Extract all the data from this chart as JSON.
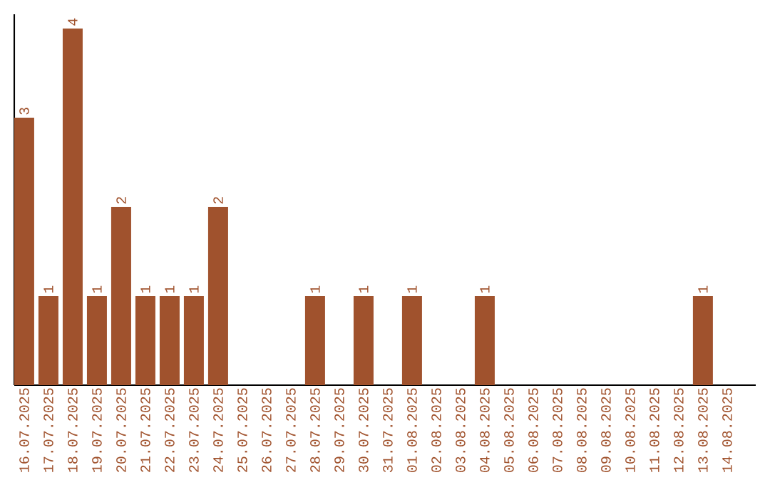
{
  "chart_data": {
    "type": "bar",
    "color": "#a0522d",
    "categories": [
      "16.07.2025",
      "17.07.2025",
      "18.07.2025",
      "19.07.2025",
      "20.07.2025",
      "21.07.2025",
      "22.07.2025",
      "23.07.2025",
      "24.07.2025",
      "25.07.2025",
      "26.07.2025",
      "27.07.2025",
      "28.07.2025",
      "29.07.2025",
      "30.07.2025",
      "31.07.2025",
      "01.08.2025",
      "02.08.2025",
      "03.08.2025",
      "04.08.2025",
      "05.08.2025",
      "06.08.2025",
      "07.08.2025",
      "08.08.2025",
      "09.08.2025",
      "10.08.2025",
      "11.08.2025",
      "12.08.2025",
      "13.08.2025",
      "14.08.2025"
    ],
    "values": [
      3,
      1,
      4,
      1,
      2,
      1,
      1,
      1,
      2,
      0,
      0,
      0,
      1,
      0,
      1,
      0,
      1,
      0,
      0,
      1,
      0,
      0,
      0,
      0,
      0,
      0,
      0,
      0,
      1,
      0
    ],
    "value_labels": [
      "3",
      "1",
      "4",
      "1",
      "2",
      "1",
      "1",
      "1",
      "2",
      null,
      null,
      null,
      "1",
      null,
      "1",
      null,
      "1",
      null,
      null,
      "1",
      null,
      null,
      null,
      null,
      null,
      null,
      null,
      null,
      "1",
      null
    ],
    "ylim": [
      0,
      4.16
    ],
    "tick_labels": "x"
  }
}
